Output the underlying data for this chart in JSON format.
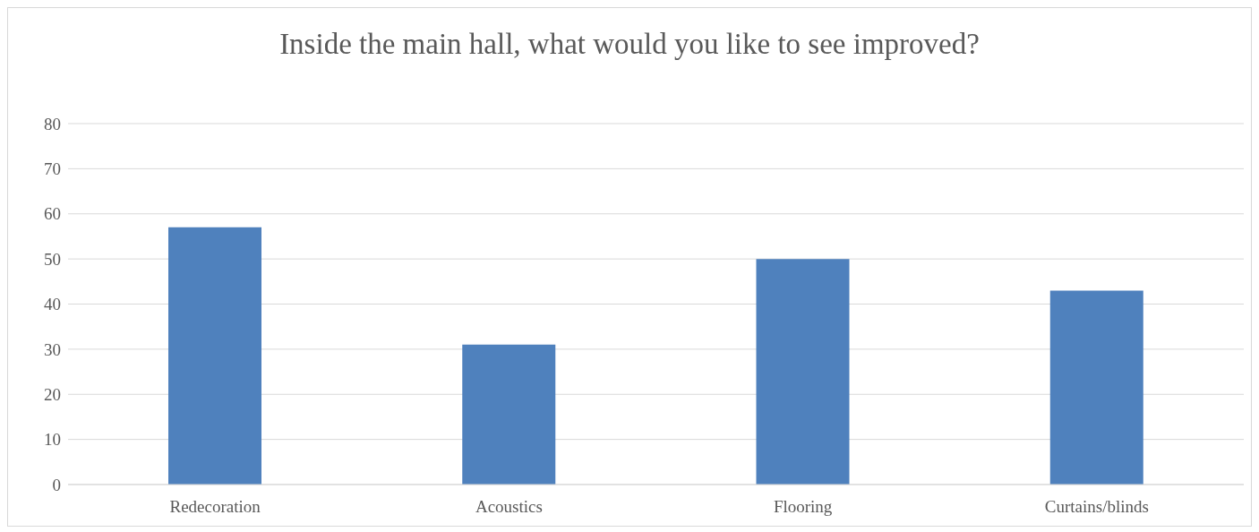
{
  "chart_data": {
    "type": "bar",
    "title": "Inside the main hall, what would you like to see improved?",
    "categories": [
      "Redecoration",
      "Acoustics",
      "Flooring",
      "Curtains/blinds"
    ],
    "values": [
      57,
      31,
      50,
      43
    ],
    "color": "#4f81bd",
    "ylim": [
      0,
      80
    ],
    "yticks": [
      0,
      10,
      20,
      30,
      40,
      50,
      60,
      70,
      80
    ],
    "grid": "y"
  }
}
